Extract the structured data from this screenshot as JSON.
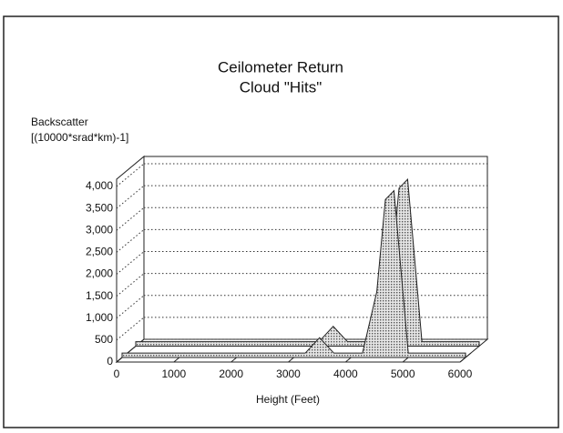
{
  "chart_data": {
    "type": "area",
    "title": "Ceilometer Return",
    "subtitle": "Cloud \"Hits\"",
    "ylabel": [
      "Backscatter",
      "[(10000*srad*km)-1]"
    ],
    "xlabel": "Height (Feet)",
    "x": [
      0,
      1000,
      2000,
      3000,
      3200,
      3450,
      3700,
      4000,
      4200,
      4450,
      4600,
      4750,
      5000,
      5200,
      6000
    ],
    "values": [
      100,
      100,
      100,
      100,
      100,
      450,
      100,
      100,
      100,
      1500,
      3600,
      3800,
      100,
      100,
      100
    ],
    "color": "#c4c4c4",
    "xlim": [
      0,
      6000
    ],
    "xticks": [
      0,
      1000,
      2000,
      3000,
      4000,
      5000,
      6000
    ],
    "ylim": [
      0,
      4000
    ],
    "yticks": [
      0,
      500,
      {
        "value": 1000,
        "label": "1,000"
      },
      {
        "value": 1500,
        "label": "1,500"
      },
      {
        "value": 2000,
        "label": "2,000"
      },
      {
        "value": 2500,
        "label": "2,500"
      },
      {
        "value": 3000,
        "label": "3,000"
      },
      {
        "value": 3500,
        "label": "3,500"
      },
      {
        "value": 4000,
        "label": "4,000"
      }
    ],
    "grid": true
  }
}
